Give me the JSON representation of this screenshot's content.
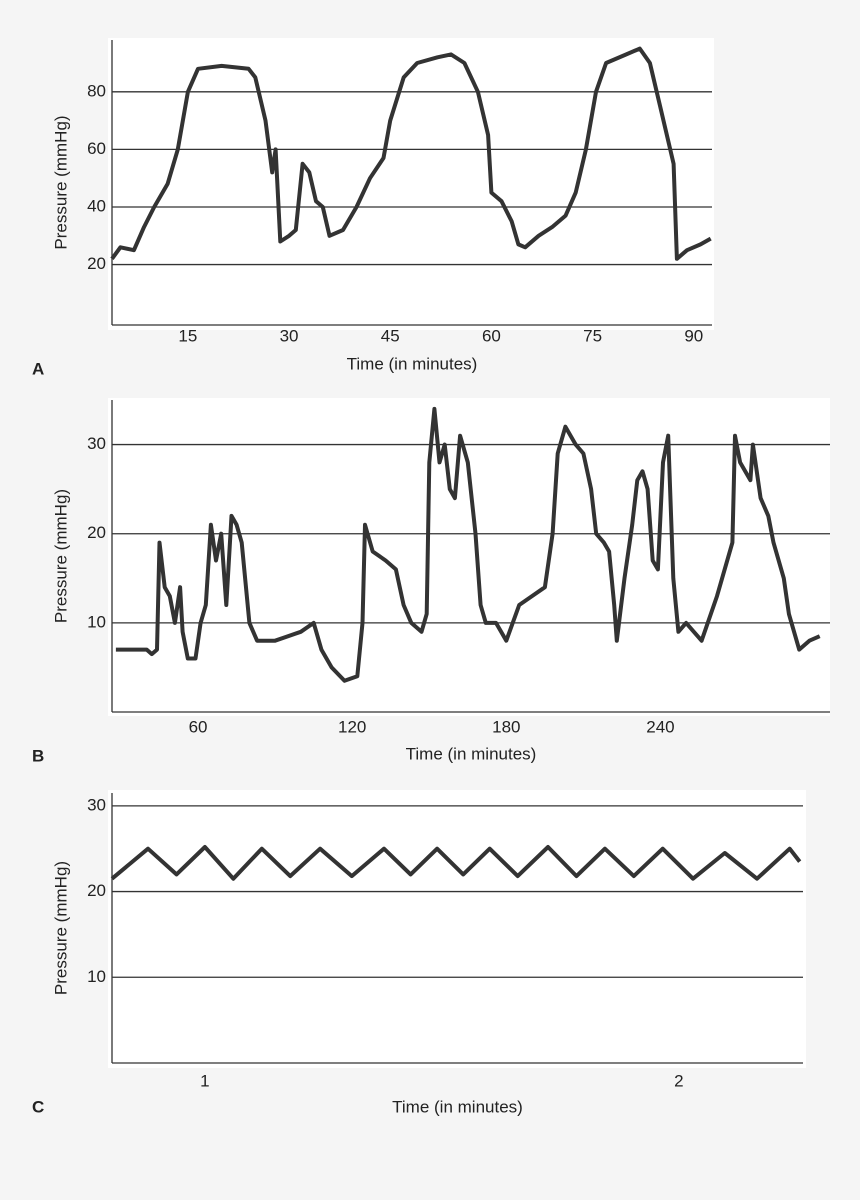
{
  "chart_data": [
    {
      "type": "line",
      "panel": "A",
      "x_label": "Time (in minutes)",
      "y_label": "Pressure (mmHg)",
      "color": "#333333",
      "grid": true,
      "xlim": [
        3.75,
        92.7
      ],
      "ylim": [
        -1,
        98
      ],
      "xticks": [
        15,
        30,
        45,
        60,
        75,
        90
      ],
      "yticks": [
        20,
        40,
        60,
        80
      ],
      "x": [
        3.75,
        5,
        7,
        8.5,
        10,
        12,
        13.5,
        15,
        16.5,
        20,
        24,
        25,
        26.5,
        27.5,
        28,
        28.7,
        30,
        31,
        32,
        33,
        34,
        35,
        36,
        38,
        40,
        42,
        44,
        45,
        47,
        49,
        52,
        54,
        56,
        58,
        59.5,
        60,
        61.5,
        63,
        64,
        65,
        67,
        69,
        71,
        72.5,
        74,
        75.5,
        77,
        80,
        82,
        83.5,
        85,
        87,
        87.5,
        89,
        91,
        92.5
      ],
      "values": [
        22,
        26,
        25,
        33,
        40,
        48,
        60,
        80,
        88,
        89,
        88,
        85,
        70,
        52,
        60,
        28,
        30,
        32,
        55,
        52,
        42,
        40,
        30,
        32,
        40,
        50,
        57,
        70,
        85,
        90,
        92,
        93,
        90,
        80,
        65,
        45,
        42,
        35,
        27,
        26,
        30,
        33,
        37,
        45,
        60,
        80,
        90,
        93,
        95,
        90,
        75,
        55,
        22,
        25,
        27,
        29
      ]
    },
    {
      "type": "line",
      "panel": "B",
      "x_label": "Time (in minutes)",
      "y_label": "Pressure (mmHg)",
      "color": "#333333",
      "grid": true,
      "xlim": [
        26.5,
        306
      ],
      "ylim": [
        0,
        35
      ],
      "xticks": [
        60,
        120,
        180,
        240
      ],
      "yticks": [
        10,
        20,
        30
      ],
      "x": [
        28,
        40,
        42,
        44,
        45,
        47,
        49,
        51,
        53,
        54,
        56,
        59,
        61,
        63,
        65,
        67,
        69,
        71,
        73,
        75,
        77,
        80,
        83,
        90,
        100,
        105,
        108,
        112,
        117,
        122,
        124,
        125,
        128,
        133,
        137,
        140,
        143,
        147,
        149,
        150,
        152,
        154,
        156,
        158,
        160,
        162,
        165,
        168,
        170,
        172,
        176,
        180,
        185,
        190,
        195,
        198,
        200,
        203,
        207,
        210,
        213,
        215,
        218,
        220,
        222,
        223,
        226,
        229,
        231,
        233,
        235,
        237,
        239,
        241,
        243,
        245,
        247,
        250,
        256,
        262,
        268,
        269,
        271,
        275,
        276,
        279,
        282,
        284,
        288,
        290,
        294,
        298,
        302
      ],
      "values": [
        7,
        7,
        6.5,
        7,
        19,
        14,
        13,
        10,
        14,
        9,
        6,
        6,
        10,
        12,
        21,
        17,
        20,
        12,
        22,
        21,
        19,
        10,
        8,
        8,
        9,
        10,
        7,
        5,
        3.5,
        4,
        10,
        21,
        18,
        17,
        16,
        12,
        10,
        9,
        11,
        28,
        34,
        28,
        30,
        25,
        24,
        31,
        28,
        20,
        12,
        10,
        10,
        8,
        12,
        13,
        14,
        20,
        29,
        32,
        30,
        29,
        25,
        20,
        19,
        18,
        12,
        8,
        15,
        21,
        26,
        27,
        25,
        17,
        16,
        28,
        31,
        15,
        9,
        10,
        8,
        13,
        19,
        31,
        28,
        26,
        30,
        24,
        22,
        19,
        15,
        11,
        7,
        8,
        8.5
      ]
    },
    {
      "type": "line",
      "panel": "C",
      "x_label": "Time (in minutes)",
      "y_label": "Pressure (mmHg)",
      "color": "#333333",
      "grid": true,
      "xlim": [
        0.804,
        2.262
      ],
      "ylim": [
        0,
        31.5
      ],
      "xticks": [
        1,
        2
      ],
      "yticks": [
        10,
        20,
        30
      ],
      "x": [
        0.804,
        0.88,
        0.94,
        1.0,
        1.06,
        1.12,
        1.18,
        1.243,
        1.31,
        1.378,
        1.434,
        1.49,
        1.545,
        1.601,
        1.66,
        1.724,
        1.784,
        1.844,
        1.905,
        1.966,
        2.03,
        2.097,
        2.165,
        2.234,
        2.255
      ],
      "values": [
        21.5,
        25,
        22,
        25.2,
        21.5,
        25,
        21.8,
        25,
        21.8,
        25,
        22,
        25,
        22,
        25,
        21.8,
        25.2,
        21.8,
        25,
        21.8,
        25,
        21.5,
        24.5,
        21.5,
        25,
        23.5
      ]
    }
  ]
}
